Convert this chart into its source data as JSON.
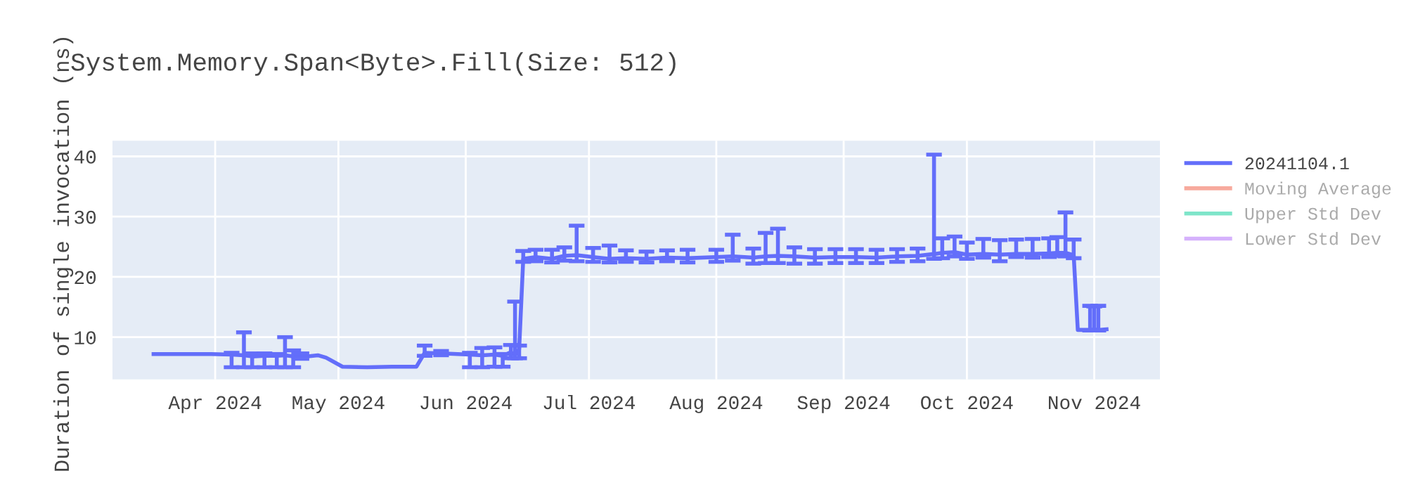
{
  "chart_data": {
    "type": "line",
    "title": "System.Memory.Span<Byte>.Fill(Size: 512)",
    "ylabel": "Duration of single invocation (ns)",
    "x": [
      "2024-03-17",
      "2024-03-24",
      "2024-03-31",
      "2024-04-05",
      "2024-04-08",
      "2024-04-10",
      "2024-04-13",
      "2024-04-16",
      "2024-04-18",
      "2024-04-20",
      "2024-04-22",
      "2024-04-26",
      "2024-04-28",
      "2024-05-02",
      "2024-05-08",
      "2024-05-14",
      "2024-05-20",
      "2024-05-22",
      "2024-05-26",
      "2024-05-30",
      "2024-06-02",
      "2024-06-05",
      "2024-06-08",
      "2024-06-10",
      "2024-06-12",
      "2024-06-13",
      "2024-06-14",
      "2024-06-15",
      "2024-06-18",
      "2024-06-22",
      "2024-06-25",
      "2024-06-28",
      "2024-07-02",
      "2024-07-06",
      "2024-07-10",
      "2024-07-15",
      "2024-07-20",
      "2024-07-25",
      "2024-08-01",
      "2024-08-05",
      "2024-08-10",
      "2024-08-13",
      "2024-08-16",
      "2024-08-20",
      "2024-08-25",
      "2024-08-30",
      "2024-09-04",
      "2024-09-09",
      "2024-09-14",
      "2024-09-19",
      "2024-09-23",
      "2024-09-25",
      "2024-09-28",
      "2024-10-01",
      "2024-10-05",
      "2024-10-09",
      "2024-10-13",
      "2024-10-17",
      "2024-10-21",
      "2024-10-23",
      "2024-10-25",
      "2024-10-27",
      "2024-10-28",
      "2024-10-31",
      "2024-11-01",
      "2024-11-02",
      "2024-11-04"
    ],
    "series": [
      {
        "name": "20241104.1",
        "color": "#636efa",
        "values": [
          7.2,
          7.2,
          7.2,
          7.1,
          7.0,
          6.8,
          6.9,
          6.9,
          7.0,
          6.8,
          6.7,
          7.0,
          6.6,
          5.1,
          5.0,
          5.1,
          5.1,
          7.4,
          7.3,
          7.2,
          7.1,
          7.0,
          7.1,
          6.9,
          7.5,
          7.0,
          8.0,
          23.0,
          23.3,
          23.0,
          23.5,
          23.6,
          23.3,
          23.0,
          23.1,
          23.0,
          23.2,
          23.1,
          23.3,
          23.4,
          23.2,
          23.4,
          23.5,
          23.4,
          23.2,
          23.3,
          23.3,
          23.2,
          23.4,
          23.5,
          23.8,
          24.0,
          24.1,
          23.7,
          23.8,
          23.7,
          23.8,
          23.8,
          23.9,
          24.0,
          24.0,
          23.6,
          11.2,
          11.2,
          11.3,
          11.2,
          11.3
        ],
        "errors": [
          null,
          null,
          null,
          [
            5.0,
            7.4
          ],
          [
            5.0,
            10.8
          ],
          [
            5.0,
            7.3
          ],
          [
            5.0,
            7.3
          ],
          [
            5.0,
            7.2
          ],
          [
            5.0,
            10.0
          ],
          [
            5.0,
            7.8
          ],
          [
            6.4,
            7.3
          ],
          null,
          null,
          null,
          null,
          null,
          null,
          [
            6.9,
            8.6
          ],
          [
            7.0,
            7.7
          ],
          null,
          [
            5.0,
            7.4
          ],
          [
            5.0,
            8.2
          ],
          [
            5.1,
            8.3
          ],
          [
            5.1,
            7.2
          ],
          [
            6.5,
            8.7
          ],
          [
            6.5,
            15.9
          ],
          [
            6.5,
            8.6
          ],
          [
            22.5,
            24.3
          ],
          [
            22.6,
            24.5
          ],
          [
            22.4,
            24.5
          ],
          [
            22.7,
            24.9
          ],
          [
            22.6,
            28.5
          ],
          [
            22.5,
            24.8
          ],
          [
            22.4,
            25.2
          ],
          [
            22.5,
            24.4
          ],
          [
            22.4,
            24.2
          ],
          [
            22.6,
            24.4
          ],
          [
            22.4,
            24.5
          ],
          [
            22.5,
            24.5
          ],
          [
            22.7,
            27.0
          ],
          [
            22.2,
            24.7
          ],
          [
            22.3,
            27.3
          ],
          [
            22.3,
            28.0
          ],
          [
            22.2,
            24.9
          ],
          [
            22.2,
            24.6
          ],
          [
            22.3,
            24.6
          ],
          [
            22.3,
            24.6
          ],
          [
            22.3,
            24.5
          ],
          [
            22.5,
            24.6
          ],
          [
            22.6,
            24.7
          ],
          [
            23.0,
            40.3
          ],
          [
            23.1,
            26.4
          ],
          [
            23.4,
            26.7
          ],
          [
            23.0,
            25.7
          ],
          [
            23.2,
            26.3
          ],
          [
            22.6,
            26.1
          ],
          [
            23.3,
            26.2
          ],
          [
            23.2,
            26.3
          ],
          [
            23.3,
            26.4
          ],
          [
            23.5,
            26.6
          ],
          [
            23.4,
            30.7
          ],
          [
            23.1,
            26.2
          ],
          null,
          [
            11.1,
            15.2
          ],
          [
            11.1,
            15.1
          ],
          [
            11.1,
            15.2
          ],
          null
        ]
      },
      {
        "name": "Moving Average",
        "color": "#ef553b",
        "values": [
          null,
          null,
          null,
          null,
          null,
          null,
          null,
          null,
          null,
          null,
          null,
          null,
          null,
          null,
          null,
          null,
          null,
          null,
          null,
          null,
          null,
          null,
          null,
          null,
          null,
          null,
          null,
          null,
          null,
          null,
          null,
          null,
          null,
          null,
          null,
          null,
          null,
          null,
          null,
          null,
          null,
          null,
          null,
          null,
          null,
          null,
          null,
          null,
          null,
          null,
          null,
          null,
          null,
          null,
          null,
          null,
          null,
          null,
          null,
          null,
          null,
          null,
          null,
          null,
          null,
          null,
          null
        ]
      },
      {
        "name": "Upper Std Dev",
        "color": "#00cc96",
        "values": [
          null,
          null,
          null,
          null,
          null,
          null,
          null,
          null,
          null,
          null,
          null,
          null,
          null,
          null,
          null,
          null,
          null,
          null,
          null,
          null,
          null,
          null,
          null,
          null,
          null,
          null,
          null,
          null,
          null,
          null,
          null,
          null,
          null,
          null,
          null,
          null,
          null,
          null,
          null,
          null,
          null,
          null,
          null,
          null,
          null,
          null,
          null,
          null,
          null,
          null,
          null,
          null,
          null,
          null,
          null,
          null,
          null,
          null,
          null,
          null,
          null,
          null,
          null,
          null,
          null,
          null,
          null
        ]
      },
      {
        "name": "Lower Std Dev",
        "color": "#ab63fa",
        "values": [
          null,
          null,
          null,
          null,
          null,
          null,
          null,
          null,
          null,
          null,
          null,
          null,
          null,
          null,
          null,
          null,
          null,
          null,
          null,
          null,
          null,
          null,
          null,
          null,
          null,
          null,
          null,
          null,
          null,
          null,
          null,
          null,
          null,
          null,
          null,
          null,
          null,
          null,
          null,
          null,
          null,
          null,
          null,
          null,
          null,
          null,
          null,
          null,
          null,
          null,
          null,
          null,
          null,
          null,
          null,
          null,
          null,
          null,
          null,
          null,
          null,
          null,
          null,
          null,
          null,
          null,
          null
        ]
      }
    ],
    "xlim": [
      "2024-03-07",
      "2024-11-17"
    ],
    "xticks": [
      {
        "value": "2024-04-01",
        "label": "Apr 2024"
      },
      {
        "value": "2024-05-01",
        "label": "May 2024"
      },
      {
        "value": "2024-06-01",
        "label": "Jun 2024"
      },
      {
        "value": "2024-07-01",
        "label": "Jul 2024"
      },
      {
        "value": "2024-08-01",
        "label": "Aug 2024"
      },
      {
        "value": "2024-09-01",
        "label": "Sep 2024"
      },
      {
        "value": "2024-10-01",
        "label": "Oct 2024"
      },
      {
        "value": "2024-11-01",
        "label": "Nov 2024"
      }
    ],
    "ylim": [
      3,
      42.6
    ],
    "yticks": [
      10,
      20,
      30,
      40
    ],
    "grid": true,
    "legend": "right",
    "marker": "none",
    "line_style": "solid"
  }
}
